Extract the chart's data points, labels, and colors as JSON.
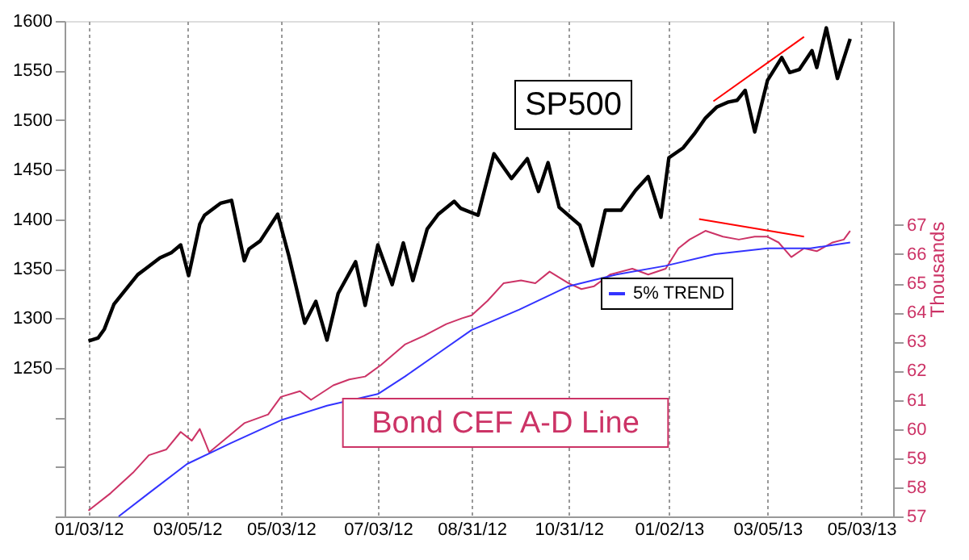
{
  "chart_data": {
    "type": "line",
    "y2label": "Thousands",
    "xlim": [
      "2011-12-19",
      "2013-05-23"
    ],
    "xticks": [
      {
        "value": "2012-01-03",
        "label": "01/03/12"
      },
      {
        "value": "2012-03-05",
        "label": "03/05/12"
      },
      {
        "value": "2012-05-03",
        "label": "05/03/12"
      },
      {
        "value": "2012-07-03",
        "label": "07/03/12"
      },
      {
        "value": "2012-08-31",
        "label": "08/31/12"
      },
      {
        "value": "2012-10-31",
        "label": "10/31/12"
      },
      {
        "value": "2013-01-02",
        "label": "01/02/13"
      },
      {
        "value": "2013-03-05",
        "label": "03/05/13"
      },
      {
        "value": "2013-05-03",
        "label": "05/03/13"
      }
    ],
    "ylim": [
      1100,
      1600
    ],
    "yticks": [
      {
        "value": 1100,
        "label": null
      },
      {
        "value": 1150,
        "label": null
      },
      {
        "value": 1200,
        "label": null
      },
      1250,
      1300,
      1350,
      1400,
      1450,
      1500,
      1550,
      1600
    ],
    "y2lim": [
      57,
      74
    ],
    "y2ticks": [
      57,
      58,
      59,
      60,
      61,
      62,
      63,
      64,
      65,
      66,
      67
    ],
    "grid": "x",
    "legend": "right",
    "line_style": "solid",
    "marker": "none",
    "series": [
      {
        "name": "SP500",
        "color": "#000000",
        "x": [
          "2012-01-03",
          "2012-01-09",
          "2012-01-13",
          "2012-01-19",
          "2012-01-25",
          "2012-02-03",
          "2012-02-08",
          "2012-02-17",
          "2012-02-24",
          "2012-03-01",
          "2012-03-06",
          "2012-03-13",
          "2012-03-16",
          "2012-03-26",
          "2012-04-02",
          "2012-04-10",
          "2012-04-13",
          "2012-04-20",
          "2012-05-01",
          "2012-05-08",
          "2012-05-18",
          "2012-05-25",
          "2012-06-01",
          "2012-06-08",
          "2012-06-19",
          "2012-06-25",
          "2012-07-03",
          "2012-07-12",
          "2012-07-19",
          "2012-07-25",
          "2012-08-03",
          "2012-08-10",
          "2012-08-20",
          "2012-08-24",
          "2012-09-04",
          "2012-09-14",
          "2012-09-25",
          "2012-10-05",
          "2012-10-12",
          "2012-10-18",
          "2012-10-25",
          "2012-11-07",
          "2012-11-15",
          "2012-11-23",
          "2012-12-03",
          "2012-12-12",
          "2012-12-20",
          "2012-12-28",
          "2013-01-02",
          "2013-01-11",
          "2013-01-18",
          "2013-01-25",
          "2013-02-01",
          "2013-02-08",
          "2013-02-14",
          "2013-02-19",
          "2013-02-25",
          "2013-03-05",
          "2013-03-14",
          "2013-03-19",
          "2013-03-25",
          "2013-04-02",
          "2013-04-05",
          "2013-04-11",
          "2013-04-18",
          "2013-04-22",
          "2013-04-26"
        ],
        "values": [
          1277,
          1280,
          1289,
          1314,
          1326,
          1344,
          1350,
          1361,
          1366,
          1374,
          1343,
          1395,
          1404,
          1416,
          1419,
          1358,
          1370,
          1378,
          1405,
          1363,
          1295,
          1317,
          1278,
          1325,
          1357,
          1313,
          1374,
          1334,
          1376,
          1338,
          1390,
          1405,
          1418,
          1411,
          1404,
          1466,
          1441,
          1461,
          1428,
          1457,
          1412,
          1394,
          1353,
          1409,
          1409,
          1429,
          1443,
          1402,
          1462,
          1472,
          1486,
          1502,
          1513,
          1518,
          1520,
          1530,
          1488,
          1540,
          1563,
          1548,
          1551,
          1570,
          1553,
          1593,
          1542,
          1562,
          1582
        ]
      },
      {
        "name": "Bond CEF A-D Line",
        "color": "#cc3366",
        "axis": "y2",
        "x": [
          "2012-01-03",
          "2012-01-17",
          "2012-01-31",
          "2012-02-10",
          "2012-02-21",
          "2012-03-01",
          "2012-03-08",
          "2012-03-13",
          "2012-03-19",
          "2012-03-30",
          "2012-04-10",
          "2012-04-25",
          "2012-05-03",
          "2012-05-15",
          "2012-05-22",
          "2012-06-05",
          "2012-06-15",
          "2012-06-25",
          "2012-07-05",
          "2012-07-20",
          "2012-08-01",
          "2012-08-15",
          "2012-08-25",
          "2012-08-31",
          "2012-09-10",
          "2012-09-20",
          "2012-10-01",
          "2012-10-10",
          "2012-10-19",
          "2012-10-31",
          "2012-11-08",
          "2012-11-16",
          "2012-11-26",
          "2012-12-10",
          "2012-12-20",
          "2012-12-31",
          "2013-01-08",
          "2013-01-15",
          "2013-01-25",
          "2013-02-05",
          "2013-02-15",
          "2013-02-25",
          "2013-03-05",
          "2013-03-12",
          "2013-03-20",
          "2013-03-28",
          "2013-04-05",
          "2013-04-15",
          "2013-04-22",
          "2013-04-26"
        ],
        "values": [
          57.2,
          57.8,
          58.5,
          59.1,
          59.3,
          59.9,
          59.6,
          60.0,
          59.2,
          59.7,
          60.2,
          60.5,
          61.1,
          61.3,
          61.0,
          61.5,
          61.7,
          61.8,
          62.2,
          62.9,
          63.2,
          63.6,
          63.8,
          63.9,
          64.4,
          65.0,
          65.1,
          65.0,
          65.4,
          65.0,
          64.8,
          64.9,
          65.3,
          65.5,
          65.3,
          65.5,
          66.2,
          66.5,
          66.8,
          66.6,
          66.5,
          66.6,
          66.6,
          66.4,
          65.9,
          66.2,
          66.1,
          66.4,
          66.5,
          66.8
        ]
      },
      {
        "name": "5% TREND",
        "color": "#3333ff",
        "axis": "y2",
        "x": [
          "2012-01-22",
          "2012-02-10",
          "2012-03-05",
          "2012-04-01",
          "2012-05-03",
          "2012-06-01",
          "2012-07-03",
          "2012-07-20",
          "2012-08-10",
          "2012-08-31",
          "2012-09-30",
          "2012-10-31",
          "2012-11-30",
          "2012-12-31",
          "2013-01-31",
          "2013-03-05",
          "2013-04-01",
          "2013-04-26"
        ],
        "values": [
          57.0,
          57.8,
          58.8,
          59.5,
          60.3,
          60.8,
          61.2,
          61.8,
          62.6,
          63.4,
          64.1,
          64.9,
          65.3,
          65.6,
          66.0,
          66.2,
          66.2,
          66.4
        ]
      },
      {
        "type": "line",
        "color": "#ff0000",
        "x": [
          "2013-01-30",
          "2013-03-28"
        ],
        "values": [
          1519,
          1584
        ]
      },
      {
        "type": "line",
        "color": "#ff0000",
        "axis": "y2",
        "x": [
          "2013-01-21",
          "2013-03-28"
        ],
        "values": [
          67.2,
          66.6
        ]
      }
    ]
  }
}
